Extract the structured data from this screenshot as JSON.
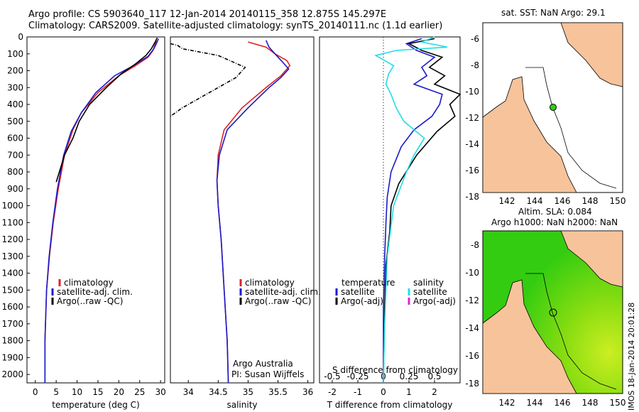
{
  "header": {
    "line1": "Argo profile: CS 5903640_117 12-Jan-2014 20140115_358 12.875S 145.297E",
    "line2": "Climatology: CARS2009. Satellite-adjusted climatology: synTS_20140111.nc (1.1d earlier)"
  },
  "colors": {
    "climatology": "#e02020",
    "satellite": "#1a1acc",
    "argo": "#000000",
    "sal_satellite": "#22dde8",
    "sal_argo": "#dd22dd",
    "land": "#f7c39b",
    "sea_green": "#33cc11",
    "sea_yellow": "#ccee22"
  },
  "footer_note": "IMOS 18-Jan-2014 20:01:28",
  "credits": {
    "line1": "Argo Australia",
    "line2": "PI: Susan Wijffels"
  },
  "map_top": {
    "title": "sat. SST: NaN Argo: 29.1"
  },
  "map_bottom": {
    "title1": "Altim. SLA: 0.084",
    "title2": "Argo h1000: NaN h2000: NaN"
  },
  "chart_data": [
    {
      "type": "line",
      "title": "",
      "xlabel": "temperature (deg C)",
      "ylabel": "pressure",
      "xlim": [
        -2,
        31
      ],
      "ylim": [
        2050,
        0
      ],
      "xticks": [
        0,
        5,
        10,
        15,
        20,
        25,
        30
      ],
      "yticks": [
        0,
        100,
        200,
        300,
        400,
        500,
        600,
        700,
        800,
        900,
        1000,
        1100,
        1200,
        1300,
        1400,
        1500,
        1600,
        1700,
        1800,
        1900,
        2000
      ],
      "legend": [
        "climatology",
        "satellite-adj. clim.",
        "Argo(..raw -QC)"
      ],
      "series": [
        {
          "name": "climatology",
          "color": "#e02020",
          "x": [
            29,
            28.6,
            28.2,
            27,
            24,
            20,
            15,
            11,
            9,
            7,
            5.5,
            4.3,
            3.4,
            2.7,
            2.3,
            2.3
          ],
          "y": [
            20,
            50,
            80,
            120,
            170,
            230,
            330,
            450,
            550,
            700,
            900,
            1100,
            1300,
            1500,
            1800,
            2050
          ]
        },
        {
          "name": "satellite-adj. clim.",
          "color": "#1a1acc",
          "x": [
            29.5,
            29,
            28.4,
            27,
            23.5,
            19,
            14.5,
            11,
            8.6,
            6.8,
            5.3,
            4.2,
            3.3,
            2.7,
            2.3,
            2.3
          ],
          "y": [
            10,
            40,
            70,
            115,
            170,
            230,
            330,
            450,
            560,
            700,
            900,
            1100,
            1300,
            1500,
            1800,
            2050
          ]
        },
        {
          "name": "Argo(..raw -QC)",
          "color": "#000000",
          "x": [
            29.2,
            28.7,
            27.8,
            26.5,
            24,
            20.5,
            17,
            13,
            10.5,
            9,
            7,
            5
          ],
          "y": [
            5,
            30,
            70,
            110,
            160,
            220,
            300,
            400,
            500,
            600,
            700,
            860
          ]
        }
      ]
    },
    {
      "type": "line",
      "title": "",
      "xlabel": "salinity",
      "ylabel": "pressure",
      "xlim": [
        33.7,
        36.1
      ],
      "ylim": [
        2050,
        0
      ],
      "xticks": [
        34,
        34.5,
        35,
        35.5,
        36
      ],
      "legend": [
        "climatology",
        "satellite-adj. clim.",
        "Argo(..raw -QC)"
      ],
      "series": [
        {
          "name": "climatology",
          "color": "#e02020",
          "x": [
            35,
            35.3,
            35.45,
            35.65,
            35.7,
            35.55,
            35.3,
            34.9,
            34.6,
            34.5,
            34.48,
            34.5,
            34.55,
            34.6,
            34.65,
            34.67
          ],
          "y": [
            30,
            60,
            100,
            140,
            170,
            230,
            300,
            420,
            550,
            700,
            850,
            1000,
            1200,
            1500,
            1800,
            2050
          ]
        },
        {
          "name": "satellite-adj. clim.",
          "color": "#1a1acc",
          "x": [
            35.3,
            35.35,
            35.45,
            35.58,
            35.68,
            35.55,
            35.35,
            35,
            34.65,
            34.52,
            34.48,
            34.5,
            34.55,
            34.6,
            34.65,
            34.67
          ],
          "y": [
            20,
            60,
            100,
            150,
            190,
            240,
            300,
            420,
            550,
            700,
            850,
            1000,
            1200,
            1500,
            1800,
            2050
          ]
        },
        {
          "name": "Argo(..raw -QC)",
          "color": "#000000",
          "x": [
            33.7,
            33.82,
            33.9,
            34.5,
            34.95,
            34.8,
            34.5,
            34.2,
            33.9,
            33.7
          ],
          "y": [
            40,
            50,
            70,
            110,
            180,
            240,
            300,
            360,
            420,
            470
          ]
        }
      ]
    },
    {
      "type": "line",
      "title": "",
      "xlabel": "T difference from climatology",
      "ylabel": "pressure",
      "xlim": [
        -2.5,
        3
      ],
      "ylim": [
        2050,
        0
      ],
      "xticks": [
        -2,
        -1,
        0,
        1,
        2
      ],
      "x2label": "S difference from climatology",
      "x2ticks": [
        -0.5,
        -0.25,
        0,
        0.25,
        0.5
      ],
      "legend": [
        "temperature",
        "satellite",
        "Argo(-adj)",
        "salinity",
        "satellite",
        "Argo(-adj)"
      ],
      "series": [
        {
          "name": "temperature satellite",
          "color": "#1a1acc",
          "x": [
            1.5,
            0.9,
            1.3,
            2,
            1.5,
            1.7,
            1.2,
            2.3,
            2.2,
            1.9,
            1.2,
            0.7,
            0.3,
            0.15,
            0.1,
            0.05,
            0,
            0
          ],
          "y": [
            10,
            40,
            80,
            120,
            180,
            230,
            280,
            340,
            400,
            470,
            550,
            650,
            800,
            950,
            1100,
            1300,
            1600,
            2050
          ]
        },
        {
          "name": "temperature Argo(-adj)",
          "color": "#000000",
          "x": [
            2,
            1,
            1.5,
            2.3,
            1.8,
            2.4,
            2,
            3,
            2.6,
            2.8,
            2.1,
            1.3,
            0.6,
            0.3,
            0.25,
            0.1,
            0.05,
            0
          ],
          "y": [
            10,
            40,
            80,
            120,
            180,
            230,
            280,
            340,
            400,
            470,
            560,
            700,
            870,
            1000,
            1150,
            1350,
            1600,
            2050
          ]
        },
        {
          "name": "salinity satellite",
          "color": "#22dde8",
          "x": [
            2,
            1.5,
            2.5,
            0.5,
            -0.3,
            0.4,
            0.2,
            0.1,
            0.3,
            0.5,
            0.8,
            1.6,
            1.2,
            0.9,
            0.4,
            0.15,
            0.05,
            0
          ],
          "y": [
            0,
            30,
            60,
            80,
            110,
            170,
            220,
            280,
            340,
            420,
            500,
            600,
            700,
            800,
            1000,
            1300,
            1700,
            2050
          ]
        }
      ]
    }
  ]
}
